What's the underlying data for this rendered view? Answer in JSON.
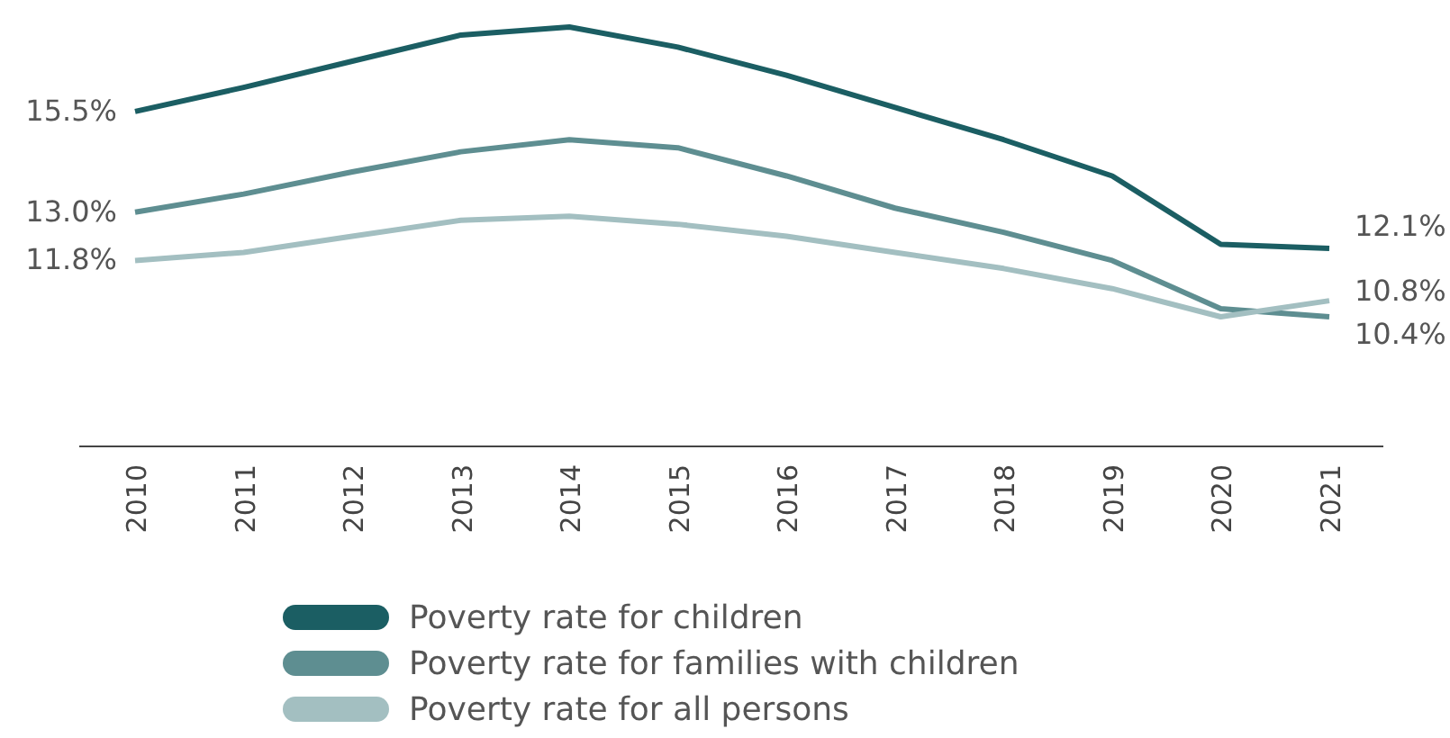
{
  "chart_data": {
    "type": "line",
    "categories": [
      "2010",
      "2011",
      "2012",
      "2013",
      "2014",
      "2015",
      "2016",
      "2017",
      "2018",
      "2019",
      "2020",
      "2021"
    ],
    "series": [
      {
        "name": "Poverty rate for children",
        "color": "#1b5e63",
        "values": [
          15.5,
          16.1,
          16.75,
          17.4,
          17.6,
          17.1,
          16.4,
          15.6,
          14.8,
          13.9,
          12.2,
          12.1
        ],
        "value_labels": [
          "15.5%",
          null,
          null,
          null,
          null,
          null,
          null,
          null,
          null,
          null,
          null,
          "12.1%"
        ]
      },
      {
        "name": "Poverty rate for families with children",
        "color": "#5e8e91",
        "values": [
          13.0,
          13.45,
          14.0,
          14.5,
          14.8,
          14.6,
          13.9,
          13.1,
          12.5,
          11.8,
          10.6,
          10.4
        ],
        "value_labels": [
          "13.0%",
          null,
          null,
          null,
          null,
          null,
          null,
          null,
          null,
          null,
          null,
          "10.4%"
        ]
      },
      {
        "name": "Poverty rate for all persons",
        "color": "#a3bfc1",
        "values": [
          11.8,
          12.0,
          12.4,
          12.8,
          12.9,
          12.7,
          12.4,
          12.0,
          11.6,
          11.1,
          10.4,
          10.8
        ],
        "value_labels": [
          "11.8%",
          null,
          null,
          null,
          null,
          null,
          null,
          null,
          null,
          null,
          null,
          "10.8%"
        ]
      }
    ],
    "legend": "bottom",
    "grid": false,
    "marker": "none",
    "line_style": "solid"
  }
}
